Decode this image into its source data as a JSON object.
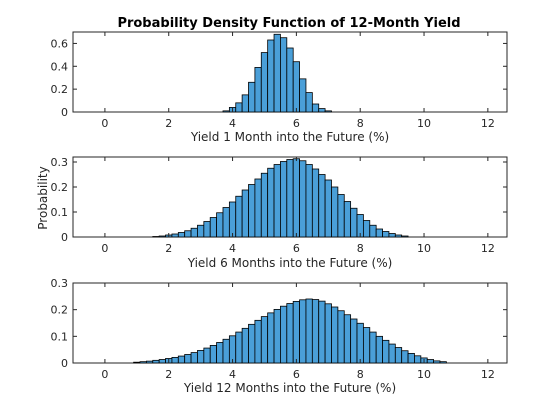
{
  "figure": {
    "title": "Probability Density Function of 12-Month Yield",
    "ylabel": "Probability",
    "bar_color": "#4a9fd8",
    "edge_color": "#000000"
  },
  "chart_data": [
    {
      "type": "bar",
      "xlabel": "Yield 1 Month into the Future (%)",
      "xlim": [
        -1,
        12.6
      ],
      "ylim": [
        0,
        0.7
      ],
      "xticks": [
        0,
        2,
        4,
        6,
        8,
        10,
        12
      ],
      "yticks": [
        0,
        0.2,
        0.4,
        0.6
      ],
      "xtick_labels": [
        "0",
        "2",
        "4",
        "6",
        "8",
        "10",
        "12"
      ],
      "ytick_labels": [
        "0",
        "0.2",
        "0.4",
        "0.6"
      ],
      "bin_width": 0.2,
      "x": [
        3.8,
        4.0,
        4.2,
        4.4,
        4.6,
        4.8,
        5.0,
        5.2,
        5.4,
        5.6,
        5.8,
        6.0,
        6.2,
        6.4,
        6.6,
        6.8,
        7.0
      ],
      "values": [
        0.01,
        0.04,
        0.08,
        0.15,
        0.26,
        0.39,
        0.52,
        0.63,
        0.68,
        0.65,
        0.56,
        0.44,
        0.29,
        0.17,
        0.07,
        0.03,
        0.01
      ]
    },
    {
      "type": "bar",
      "xlabel": "Yield 6 Months into the Future (%)",
      "xlim": [
        -1,
        12.6
      ],
      "ylim": [
        0,
        0.32
      ],
      "xticks": [
        0,
        2,
        4,
        6,
        8,
        10,
        12
      ],
      "yticks": [
        0,
        0.1,
        0.2,
        0.3
      ],
      "xtick_labels": [
        "0",
        "2",
        "4",
        "6",
        "8",
        "10",
        "12"
      ],
      "ytick_labels": [
        "0",
        "0.1",
        "0.2",
        "0.3"
      ],
      "bin_width": 0.2,
      "x": [
        1.6,
        1.8,
        2.0,
        2.2,
        2.4,
        2.6,
        2.8,
        3.0,
        3.2,
        3.4,
        3.6,
        3.8,
        4.0,
        4.2,
        4.4,
        4.6,
        4.8,
        5.0,
        5.2,
        5.4,
        5.6,
        5.8,
        6.0,
        6.2,
        6.4,
        6.6,
        6.8,
        7.0,
        7.2,
        7.4,
        7.6,
        7.8,
        8.0,
        8.2,
        8.4,
        8.6,
        8.8,
        9.0,
        9.2,
        9.4
      ],
      "values": [
        0.002,
        0.004,
        0.008,
        0.012,
        0.018,
        0.025,
        0.035,
        0.047,
        0.062,
        0.078,
        0.097,
        0.118,
        0.14,
        0.163,
        0.188,
        0.21,
        0.232,
        0.255,
        0.275,
        0.29,
        0.302,
        0.31,
        0.313,
        0.305,
        0.29,
        0.272,
        0.25,
        0.228,
        0.2,
        0.17,
        0.142,
        0.115,
        0.09,
        0.066,
        0.047,
        0.032,
        0.022,
        0.014,
        0.008,
        0.004
      ]
    },
    {
      "type": "bar",
      "xlabel": "Yield 12 Months into the Future (%)",
      "xlim": [
        -1,
        12.6
      ],
      "ylim": [
        0,
        0.3
      ],
      "xticks": [
        0,
        2,
        4,
        6,
        8,
        10,
        12
      ],
      "yticks": [
        0,
        0.1,
        0.2,
        0.3
      ],
      "xtick_labels": [
        "0",
        "2",
        "4",
        "6",
        "8",
        "10",
        "12"
      ],
      "ytick_labels": [
        "0",
        "0.1",
        "0.2",
        "0.3"
      ],
      "bin_width": 0.2,
      "x": [
        1.0,
        1.2,
        1.4,
        1.6,
        1.8,
        2.0,
        2.2,
        2.4,
        2.6,
        2.8,
        3.0,
        3.2,
        3.4,
        3.6,
        3.8,
        4.0,
        4.2,
        4.4,
        4.6,
        4.8,
        5.0,
        5.2,
        5.4,
        5.6,
        5.8,
        6.0,
        6.2,
        6.4,
        6.6,
        6.8,
        7.0,
        7.2,
        7.4,
        7.6,
        7.8,
        8.0,
        8.2,
        8.4,
        8.6,
        8.8,
        9.0,
        9.2,
        9.4,
        9.6,
        9.8,
        10.0,
        10.2,
        10.4,
        10.6
      ],
      "values": [
        0.003,
        0.005,
        0.007,
        0.01,
        0.013,
        0.017,
        0.021,
        0.026,
        0.032,
        0.039,
        0.047,
        0.056,
        0.066,
        0.077,
        0.089,
        0.102,
        0.116,
        0.13,
        0.145,
        0.16,
        0.174,
        0.188,
        0.201,
        0.213,
        0.223,
        0.231,
        0.237,
        0.24,
        0.238,
        0.232,
        0.222,
        0.21,
        0.196,
        0.181,
        0.165,
        0.149,
        0.133,
        0.116,
        0.1,
        0.085,
        0.071,
        0.058,
        0.046,
        0.036,
        0.027,
        0.019,
        0.013,
        0.008,
        0.005
      ]
    }
  ]
}
